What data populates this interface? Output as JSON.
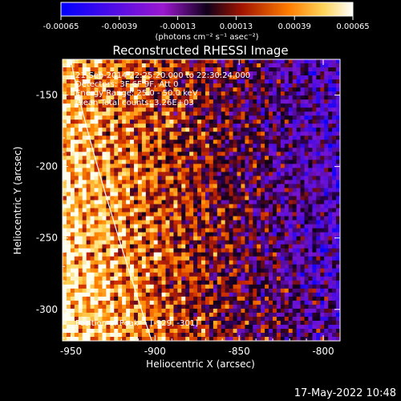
{
  "chart_data": {
    "type": "heatmap",
    "title": "Reconstructed RHESSI Image",
    "xlabel": "Heliocentric X (arcsec)",
    "ylabel": "Heliocentric Y (arcsec)",
    "xlim": [
      -955,
      -790
    ],
    "ylim": [
      -322,
      -125
    ],
    "xticks": [
      -950,
      -900,
      -850,
      -800
    ],
    "yticks": [
      -150,
      -200,
      -250,
      -300
    ],
    "colorbar": {
      "ticks": [
        "-0.00065",
        "-0.00039",
        "-0.00013",
        "0.00013",
        "0.00039",
        "0.00065"
      ],
      "range": [
        -0.00065,
        0.00065
      ],
      "units_label": "(photons cm⁻² s⁻¹ asec⁻²)"
    },
    "annotations": [
      "21-Sep-2014 22:25:20.000 to 22:30:24.000",
      "Detectors: 3F 6F 9F, Att 0",
      "Energy Range: 25.0 - 50.0 keV",
      "Clean    Total counts: 3.26E+03"
    ],
    "peak_label": "Position of Peak = [-929, -301]",
    "peak_position": [
      -929,
      -301
    ],
    "footer_date": "17-May-2022 10:48",
    "grid": false
  }
}
